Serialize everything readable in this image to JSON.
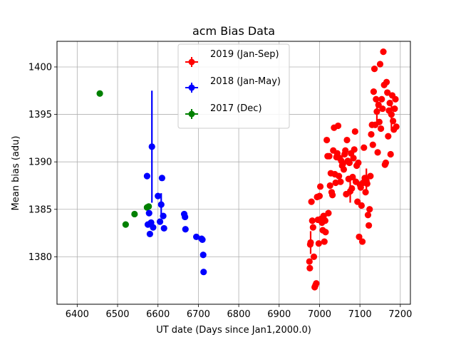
{
  "chart_data": {
    "type": "scatter",
    "title": "acm Bias Data",
    "xlabel": "UT date (Days since Jan1,2000.0)",
    "ylabel": "Mean bias (adu)",
    "xlim": [
      6350,
      7225
    ],
    "ylim": [
      1375,
      1402.7
    ],
    "xticks": [
      6400,
      6500,
      6600,
      6700,
      6800,
      6900,
      7000,
      7100,
      7200
    ],
    "yticks": [
      1380,
      1385,
      1390,
      1395,
      1400
    ],
    "grid": true,
    "legend_position": "top-center",
    "series": [
      {
        "name": "2019 (Jan-Sep)",
        "color": "#ff0000",
        "points": [
          [
            6975,
            1379.5,
            0
          ],
          [
            6976,
            1378.8,
            0
          ],
          [
            6977,
            1381.3,
            0
          ],
          [
            6978,
            1381.5,
            1.2
          ],
          [
            6980,
            1385.8,
            0
          ],
          [
            6982,
            1383.8,
            0
          ],
          [
            6984,
            1383.1,
            0
          ],
          [
            6986,
            1380.0,
            0
          ],
          [
            6988,
            1376.8,
            0
          ],
          [
            6990,
            1377.0,
            0
          ],
          [
            6992,
            1377.2,
            0
          ],
          [
            6994,
            1386.3,
            0
          ],
          [
            6996,
            1383.9,
            0
          ],
          [
            6998,
            1381.4,
            0
          ],
          [
            7000,
            1386.4,
            0
          ],
          [
            7002,
            1387.4,
            0
          ],
          [
            7004,
            1384.0,
            0
          ],
          [
            7006,
            1383.6,
            0
          ],
          [
            7008,
            1382.8,
            0
          ],
          [
            7010,
            1384.3,
            0
          ],
          [
            7012,
            1381.6,
            0
          ],
          [
            7014,
            1383.8,
            0
          ],
          [
            7015,
            1382.6,
            0
          ],
          [
            7018,
            1392.3,
            0
          ],
          [
            7020,
            1390.6,
            0
          ],
          [
            7022,
            1384.6,
            0
          ],
          [
            7024,
            1390.6,
            0
          ],
          [
            7026,
            1387.5,
            0
          ],
          [
            7028,
            1388.8,
            0
          ],
          [
            7030,
            1386.8,
            0
          ],
          [
            7032,
            1386.5,
            0
          ],
          [
            7034,
            1391.2,
            0
          ],
          [
            7036,
            1393.6,
            0
          ],
          [
            7038,
            1388.7,
            0
          ],
          [
            7040,
            1387.8,
            0
          ],
          [
            7042,
            1390.5,
            0
          ],
          [
            7044,
            1390.9,
            0
          ],
          [
            7046,
            1393.8,
            0
          ],
          [
            7048,
            1388.5,
            0
          ],
          [
            7050,
            1390.4,
            0
          ],
          [
            7052,
            1387.9,
            0
          ],
          [
            7054,
            1390.1,
            0
          ],
          [
            7056,
            1389.6,
            0
          ],
          [
            7058,
            1389.8,
            0
          ],
          [
            7060,
            1389.2,
            0
          ],
          [
            7062,
            1390.8,
            0
          ],
          [
            7064,
            1391.2,
            0
          ],
          [
            7066,
            1386.6,
            0
          ],
          [
            7068,
            1392.3,
            0
          ],
          [
            7070,
            1390.1,
            0
          ],
          [
            7072,
            1388.2,
            0
          ],
          [
            7074,
            1389.9,
            0
          ],
          [
            7076,
            1386.9,
            1.2
          ],
          [
            7078,
            1390.9,
            0
          ],
          [
            7080,
            1387.2,
            0
          ],
          [
            7082,
            1388.4,
            0
          ],
          [
            7084,
            1390.4,
            0
          ],
          [
            7086,
            1391.3,
            0
          ],
          [
            7088,
            1393.2,
            0
          ],
          [
            7090,
            1387.9,
            0
          ],
          [
            7092,
            1389.6,
            0
          ],
          [
            7094,
            1385.8,
            0
          ],
          [
            7096,
            1389.9,
            0
          ],
          [
            7098,
            1382.1,
            0
          ],
          [
            7100,
            1387.6,
            0
          ],
          [
            7102,
            1387.3,
            0
          ],
          [
            7104,
            1385.4,
            0
          ],
          [
            7106,
            1381.6,
            0
          ],
          [
            7108,
            1387.8,
            0
          ],
          [
            7110,
            1391.5,
            0
          ],
          [
            7112,
            1388.3,
            0
          ],
          [
            7114,
            1386.8,
            0
          ],
          [
            7116,
            1388.0,
            1.3
          ],
          [
            7118,
            1387.7,
            0
          ],
          [
            7120,
            1384.4,
            0
          ],
          [
            7122,
            1383.3,
            0
          ],
          [
            7124,
            1385.0,
            0
          ],
          [
            7126,
            1388.5,
            0
          ],
          [
            7128,
            1392.9,
            0
          ],
          [
            7130,
            1393.9,
            0
          ],
          [
            7132,
            1391.8,
            0
          ],
          [
            7134,
            1397.4,
            0
          ],
          [
            7136,
            1399.8,
            0
          ],
          [
            7138,
            1393.9,
            0
          ],
          [
            7140,
            1396.6,
            0
          ],
          [
            7142,
            1395.3,
            1.3
          ],
          [
            7144,
            1391.0,
            0
          ],
          [
            7146,
            1396.0,
            0
          ],
          [
            7148,
            1394.2,
            0
          ],
          [
            7150,
            1400.3,
            0
          ],
          [
            7152,
            1393.5,
            0
          ],
          [
            7154,
            1396.6,
            0
          ],
          [
            7156,
            1395.6,
            0
          ],
          [
            7158,
            1401.6,
            0
          ],
          [
            7160,
            1398.1,
            0
          ],
          [
            7162,
            1389.7,
            0
          ],
          [
            7164,
            1389.9,
            0
          ],
          [
            7166,
            1398.4,
            0
          ],
          [
            7168,
            1397.3,
            0
          ],
          [
            7170,
            1392.7,
            0
          ],
          [
            7172,
            1395.4,
            0
          ],
          [
            7174,
            1396.2,
            0
          ],
          [
            7176,
            1390.8,
            0
          ],
          [
            7178,
            1395.0,
            1.5
          ],
          [
            7180,
            1397.0,
            0
          ],
          [
            7182,
            1394.3,
            0
          ],
          [
            7184,
            1393.4,
            0
          ],
          [
            7186,
            1395.6,
            0
          ],
          [
            7188,
            1396.6,
            0
          ],
          [
            7190,
            1393.7,
            0
          ]
        ]
      },
      {
        "name": "2018 (Jan-May)",
        "color": "#0000ff",
        "points": [
          [
            6573,
            1388.5,
            0
          ],
          [
            6575,
            1383.4,
            0
          ],
          [
            6578,
            1384.6,
            0
          ],
          [
            6580,
            1382.4,
            0
          ],
          [
            6583,
            1383.6,
            0
          ],
          [
            6585,
            1391.6,
            5.9
          ],
          [
            6588,
            1383.1,
            0
          ],
          [
            6600,
            1386.4,
            0
          ],
          [
            6605,
            1383.7,
            0
          ],
          [
            6608,
            1385.5,
            1.2
          ],
          [
            6610,
            1388.3,
            0
          ],
          [
            6613,
            1384.3,
            0
          ],
          [
            6615,
            1383.0,
            0
          ],
          [
            6665,
            1384.5,
            0
          ],
          [
            6667,
            1384.2,
            0
          ],
          [
            6668,
            1382.9,
            0
          ],
          [
            6695,
            1382.1,
            0
          ],
          [
            6708,
            1381.9,
            0
          ],
          [
            6710,
            1381.8,
            0
          ],
          [
            6712,
            1380.2,
            0
          ],
          [
            6713,
            1378.4,
            0
          ]
        ]
      },
      {
        "name": "2017 (Dec)",
        "color": "#008000",
        "points": [
          [
            6456,
            1397.2,
            0
          ],
          [
            6520,
            1383.4,
            0
          ],
          [
            6542,
            1384.5,
            0
          ],
          [
            6573,
            1385.2,
            0
          ],
          [
            6577,
            1385.3,
            0
          ]
        ]
      }
    ]
  }
}
